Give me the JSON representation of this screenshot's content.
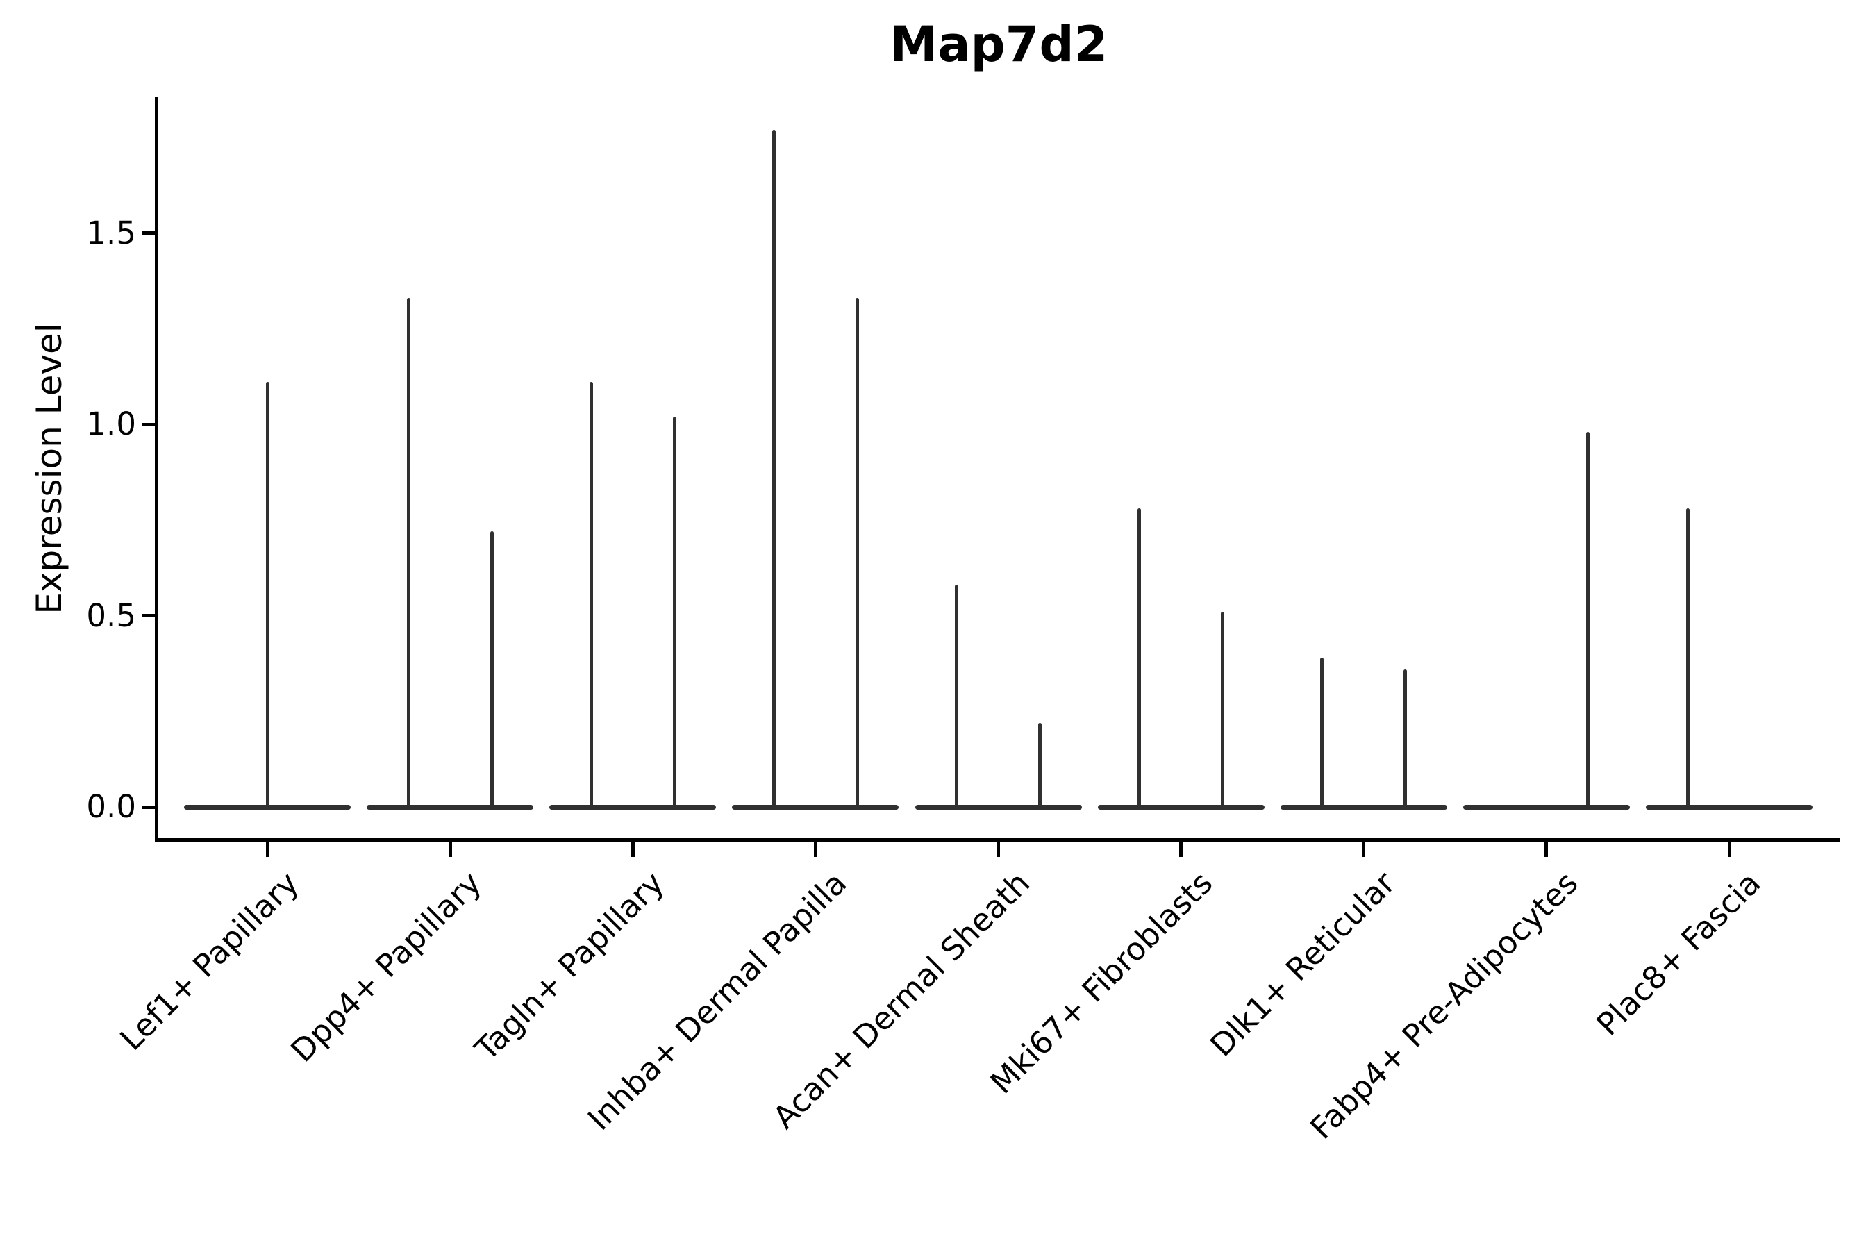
{
  "chart_data": {
    "type": "violin",
    "title": "Map7d2",
    "ylabel": "Expression Level",
    "xlabel": "",
    "grid": false,
    "legend": null,
    "yticks": [
      "0.0",
      "0.5",
      "1.0",
      "1.5"
    ],
    "ytick_values": [
      0.0,
      0.5,
      1.0,
      1.5
    ],
    "ylim": [
      -0.085,
      1.855
    ],
    "baseline_value": 0.0,
    "categories": [
      "Lef1+ Papillary",
      "Dpp4+ Papillary",
      "Tagln+ Papillary",
      "Inhba+ Dermal Papilla",
      "Acan+ Dermal Sheath",
      "Mki67+ Fibroblasts",
      "Dlk1+ Reticular",
      "Fabp4+ Pre-Adipocytes",
      "Plac8+ Fascia"
    ],
    "violins": [
      {
        "category": "Lef1+ Papillary",
        "spikes": [
          {
            "position": "center",
            "max": 1.11
          }
        ]
      },
      {
        "category": "Dpp4+ Papillary",
        "spikes": [
          {
            "position": "left",
            "max": 1.33
          },
          {
            "position": "right",
            "max": 0.72
          }
        ]
      },
      {
        "category": "Tagln+ Papillary",
        "spikes": [
          {
            "position": "left",
            "max": 1.11
          },
          {
            "position": "right",
            "max": 1.02
          }
        ]
      },
      {
        "category": "Inhba+ Dermal Papilla",
        "spikes": [
          {
            "position": "left",
            "max": 1.77
          },
          {
            "position": "right",
            "max": 1.33
          }
        ]
      },
      {
        "category": "Acan+ Dermal Sheath",
        "spikes": [
          {
            "position": "left",
            "max": 0.58
          },
          {
            "position": "right",
            "max": 0.22
          }
        ]
      },
      {
        "category": "Mki67+ Fibroblasts",
        "spikes": [
          {
            "position": "left",
            "max": 0.78
          },
          {
            "position": "right",
            "max": 0.51
          }
        ]
      },
      {
        "category": "Dlk1+ Reticular",
        "spikes": [
          {
            "position": "left",
            "max": 0.39
          },
          {
            "position": "right",
            "max": 0.36
          }
        ]
      },
      {
        "category": "Fabp4+ Pre-Adipocytes",
        "spikes": [
          {
            "position": "right",
            "max": 0.98
          }
        ]
      },
      {
        "category": "Plac8+ Fascia",
        "spikes": [
          {
            "position": "left",
            "max": 0.78
          }
        ]
      }
    ]
  },
  "colors": {
    "background": "#ffffff",
    "violin": "#303030",
    "axis": "#000000",
    "text": "#000000"
  }
}
